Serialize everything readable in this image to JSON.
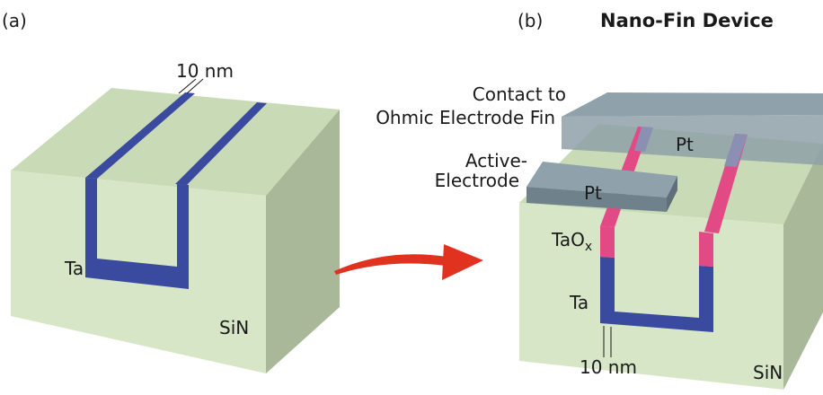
{
  "panel_a": {
    "label": "(a)",
    "dimension_label": "10 nm",
    "metal_label": "Ta",
    "substrate_label": "SiN"
  },
  "panel_b": {
    "label": "(b)",
    "title": "Nano-Fin Device",
    "contact_label_line1": "Contact to",
    "contact_label_line2": "Ohmic Electrode Fin",
    "active_label_line1": "Active-",
    "active_label_line2": "Electrode",
    "pt_label_top": "Pt",
    "pt_label_active": "Pt",
    "oxide_label": "TaO",
    "oxide_subscript": "x",
    "metal_label": "Ta",
    "dimension_label": "10 nm",
    "substrate_label": "SiN"
  },
  "colors": {
    "substrate_front": "#d6e6c6",
    "substrate_top": "#c9dbb6",
    "substrate_side": "#a8b898",
    "tantalum": "#3a4a9e",
    "tantalum_oxide": "#e24a86",
    "platinum": "#7c8e98",
    "arrow": "#e0321e"
  }
}
